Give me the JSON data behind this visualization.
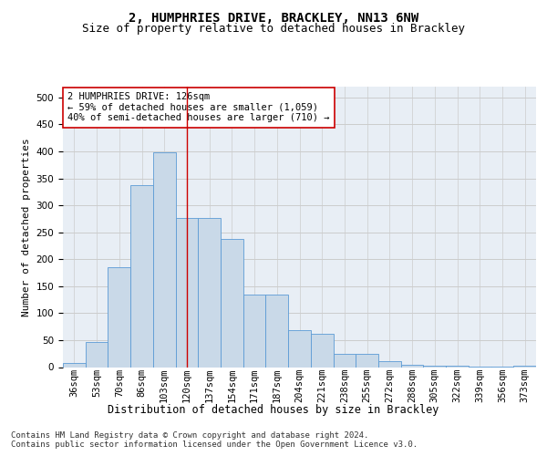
{
  "title_line1": "2, HUMPHRIES DRIVE, BRACKLEY, NN13 6NW",
  "title_line2": "Size of property relative to detached houses in Brackley",
  "xlabel": "Distribution of detached houses by size in Brackley",
  "ylabel": "Number of detached properties",
  "categories": [
    "36sqm",
    "53sqm",
    "70sqm",
    "86sqm",
    "103sqm",
    "120sqm",
    "137sqm",
    "154sqm",
    "171sqm",
    "187sqm",
    "204sqm",
    "221sqm",
    "238sqm",
    "255sqm",
    "272sqm",
    "288sqm",
    "305sqm",
    "322sqm",
    "339sqm",
    "356sqm",
    "373sqm"
  ],
  "values": [
    8,
    46,
    185,
    338,
    398,
    276,
    276,
    238,
    135,
    135,
    68,
    62,
    25,
    25,
    11,
    5,
    3,
    2,
    1,
    1,
    3
  ],
  "bar_color": "#c9d9e8",
  "bar_edge_color": "#5b9bd5",
  "vline_x": 5.0,
  "vline_color": "#cc0000",
  "annotation_text": "2 HUMPHRIES DRIVE: 126sqm\n← 59% of detached houses are smaller (1,059)\n40% of semi-detached houses are larger (710) →",
  "annotation_box_color": "#ffffff",
  "annotation_box_edge_color": "#cc0000",
  "footnote": "Contains HM Land Registry data © Crown copyright and database right 2024.\nContains public sector information licensed under the Open Government Licence v3.0.",
  "ylim": [
    0,
    520
  ],
  "yticks": [
    0,
    50,
    100,
    150,
    200,
    250,
    300,
    350,
    400,
    450,
    500
  ],
  "grid_color": "#cccccc",
  "bg_color": "#e8eef5",
  "fig_bg_color": "#ffffff",
  "title_fontsize": 10,
  "subtitle_fontsize": 9,
  "axis_label_fontsize": 8.5,
  "tick_fontsize": 7.5,
  "annotation_fontsize": 7.5,
  "footnote_fontsize": 6.5,
  "ylabel_fontsize": 8
}
